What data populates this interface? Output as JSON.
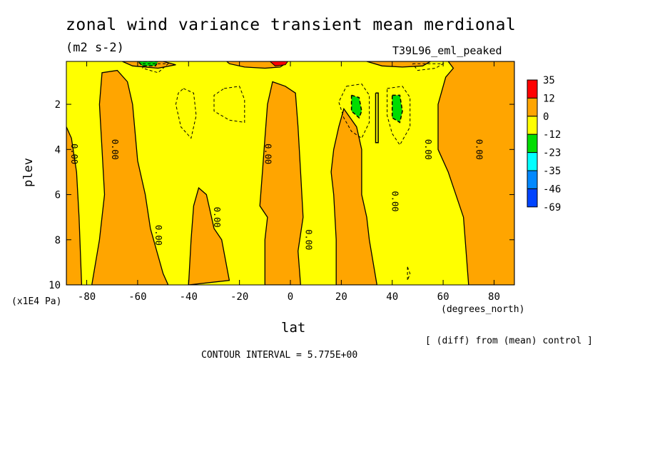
{
  "title": "zonal wind variance transient mean merdional",
  "units": "(m2 s-2)",
  "run_label": "T39L96_eml_peaked",
  "y_unit_label": "(x1E4 Pa)",
  "x_unit_label": "(degrees_north)",
  "contour_interval": "CONTOUR INTERVAL = 5.775E+00",
  "diff_note": "[ (diff) from (mean) control ]",
  "chart_data": {
    "type": "heatmap",
    "title": "zonal wind variance transient mean merdional",
    "xlabel": "lat",
    "ylabel": "plev",
    "x_ticks": [
      "-80",
      "-60",
      "-40",
      "-20",
      "0",
      "20",
      "40",
      "60",
      "80"
    ],
    "x_tick_values": [
      -80,
      -60,
      -40,
      -20,
      0,
      20,
      40,
      60,
      80
    ],
    "y_ticks": [
      "2",
      "4",
      "6",
      "8",
      "10"
    ],
    "y_tick_values": [
      2,
      4,
      6,
      8,
      10
    ],
    "xlim": [
      -88,
      88
    ],
    "ylim": [
      10,
      0.1
    ],
    "contour_labels": [
      {
        "text": "0.00",
        "lat": -86,
        "plev": 4.2
      },
      {
        "text": "0.00",
        "lat": -70,
        "plev": 4.0
      },
      {
        "text": "0.00",
        "lat": -53,
        "plev": 7.8
      },
      {
        "text": "0.00",
        "lat": -30,
        "plev": 7.0
      },
      {
        "text": "0.00",
        "lat": -10,
        "plev": 4.2
      },
      {
        "text": "0.00",
        "lat": 6,
        "plev": 8.0
      },
      {
        "text": "0.00",
        "lat": 40,
        "plev": 6.3
      },
      {
        "text": "0.00",
        "lat": 53,
        "plev": 4.0
      },
      {
        "text": "0.00",
        "lat": 73,
        "plev": 4.0
      }
    ],
    "orange_regions": [
      [
        [
          -88,
          3
        ],
        [
          -86,
          3.5
        ],
        [
          -84,
          5
        ],
        [
          -83,
          7
        ],
        [
          -82,
          10
        ],
        [
          -88,
          10
        ]
      ],
      [
        [
          -74,
          0.6
        ],
        [
          -68,
          0.5
        ],
        [
          -64,
          1
        ],
        [
          -62,
          2
        ],
        [
          -60,
          4.5
        ],
        [
          -57,
          6
        ],
        [
          -55,
          7.5
        ],
        [
          -50,
          9.5
        ],
        [
          -48,
          10
        ],
        [
          -78,
          10
        ],
        [
          -75,
          8
        ],
        [
          -73,
          6
        ],
        [
          -74,
          4
        ],
        [
          -75,
          2
        ]
      ],
      [
        [
          -36,
          5.7
        ],
        [
          -33,
          6
        ],
        [
          -30,
          7.5
        ],
        [
          -27,
          8
        ],
        [
          -24,
          9.8
        ],
        [
          -40,
          10
        ],
        [
          -39,
          8
        ],
        [
          -38,
          6.5
        ]
      ],
      [
        [
          -7,
          1
        ],
        [
          -2,
          1.2
        ],
        [
          2,
          1.5
        ],
        [
          3,
          3
        ],
        [
          4,
          5
        ],
        [
          5,
          7
        ],
        [
          3,
          8.5
        ],
        [
          4,
          10
        ],
        [
          -10,
          10
        ],
        [
          -10,
          8
        ],
        [
          -9,
          7
        ],
        [
          -12,
          6.5
        ],
        [
          -11,
          5
        ],
        [
          -10,
          3.5
        ],
        [
          -9,
          2
        ]
      ],
      [
        [
          21,
          2.2
        ],
        [
          26,
          3
        ],
        [
          28,
          4
        ],
        [
          28,
          6
        ],
        [
          30,
          7
        ],
        [
          31,
          8
        ],
        [
          34,
          10
        ],
        [
          18,
          10
        ],
        [
          18,
          8
        ],
        [
          17,
          6
        ],
        [
          16,
          5
        ],
        [
          17,
          4
        ],
        [
          19,
          3
        ]
      ],
      [
        [
          -25,
          0.1
        ],
        [
          -8,
          0.1
        ],
        [
          -2,
          0.2
        ],
        [
          -4,
          0.35
        ],
        [
          -10,
          0.4
        ],
        [
          -18,
          0.35
        ],
        [
          -24,
          0.2
        ]
      ],
      [
        [
          -66,
          0.1
        ],
        [
          -50,
          0.1
        ],
        [
          -45,
          0.25
        ],
        [
          -52,
          0.4
        ],
        [
          -62,
          0.3
        ]
      ],
      [
        [
          30,
          0.1
        ],
        [
          55,
          0.1
        ],
        [
          52,
          0.3
        ],
        [
          44,
          0.35
        ],
        [
          36,
          0.3
        ]
      ],
      [
        [
          62,
          0.1
        ],
        [
          88,
          0.1
        ],
        [
          88,
          10
        ],
        [
          70,
          10
        ],
        [
          68,
          7
        ],
        [
          62,
          5
        ],
        [
          58,
          4
        ],
        [
          58,
          2
        ],
        [
          61,
          0.8
        ],
        [
          64,
          0.4
        ]
      ]
    ],
    "red_regions": [
      [
        [
          -8,
          0.1
        ],
        [
          -1,
          0.1
        ],
        [
          -2,
          0.25
        ],
        [
          -6,
          0.3
        ]
      ]
    ],
    "green_regions": [
      [
        [
          24,
          1.6
        ],
        [
          27,
          1.7
        ],
        [
          28,
          2.3
        ],
        [
          27,
          2.6
        ],
        [
          24,
          2.3
        ]
      ],
      [
        [
          40,
          1.6
        ],
        [
          43,
          1.6
        ],
        [
          44,
          2.3
        ],
        [
          43,
          2.8
        ],
        [
          40,
          2.6
        ],
        [
          40,
          2.1
        ]
      ],
      [
        [
          -60,
          0.1
        ],
        [
          -52,
          0.1
        ],
        [
          -53,
          0.3
        ],
        [
          -58,
          0.3
        ]
      ]
    ],
    "dashed_contours": [
      [
        [
          -42,
          1.3
        ],
        [
          -38,
          1.5
        ],
        [
          -37,
          2.5
        ],
        [
          -39,
          3.5
        ],
        [
          -43,
          3.0
        ],
        [
          -45,
          2.0
        ],
        [
          -44,
          1.5
        ],
        [
          -42,
          1.3
        ]
      ],
      [
        [
          -26,
          1.3
        ],
        [
          -20,
          1.2
        ],
        [
          -18,
          1.8
        ],
        [
          -18,
          2.8
        ],
        [
          -24,
          2.7
        ],
        [
          -30,
          2.3
        ],
        [
          -30,
          1.6
        ],
        [
          -26,
          1.3
        ]
      ],
      [
        [
          22,
          1.2
        ],
        [
          28,
          1.1
        ],
        [
          31,
          1.6
        ],
        [
          31,
          2.8
        ],
        [
          28,
          3.5
        ],
        [
          24,
          3.2
        ],
        [
          21,
          2.6
        ],
        [
          19,
          1.9
        ],
        [
          22,
          1.2
        ]
      ],
      [
        [
          38,
          1.3
        ],
        [
          44,
          1.2
        ],
        [
          47,
          1.7
        ],
        [
          47,
          3.0
        ],
        [
          43,
          3.8
        ],
        [
          40,
          3.3
        ],
        [
          38,
          2.5
        ],
        [
          38,
          1.3
        ]
      ],
      [
        [
          -58,
          0.2
        ],
        [
          -48,
          0.2
        ],
        [
          -52,
          0.6
        ],
        [
          -58,
          0.4
        ],
        [
          -58,
          0.2
        ]
      ],
      [
        [
          48,
          0.2
        ],
        [
          60,
          0.2
        ],
        [
          57,
          0.4
        ],
        [
          50,
          0.5
        ],
        [
          48,
          0.2
        ]
      ],
      [
        [
          46,
          9.2
        ],
        [
          47,
          9.5
        ],
        [
          46,
          9.8
        ],
        [
          46,
          9.2
        ]
      ]
    ],
    "solid_contours": [
      [
        [
          33.5,
          1.5
        ],
        [
          34.5,
          1.5
        ],
        [
          34.5,
          3.7
        ],
        [
          33.5,
          3.7
        ],
        [
          33.5,
          1.5
        ]
      ]
    ],
    "colorbar": {
      "labels": [
        "35",
        "12",
        "0",
        "-12",
        "-23",
        "-35",
        "-46",
        "-69"
      ],
      "colors": [
        "#ff0000",
        "#ffa500",
        "#ffff00",
        "#00dd00",
        "#00ffff",
        "#0088ff",
        "#0044ff"
      ]
    },
    "fill_colors": {
      "background": "#ffff00",
      "orange": "#ffa500",
      "red": "#ff0000",
      "green": "#00dd00"
    }
  }
}
